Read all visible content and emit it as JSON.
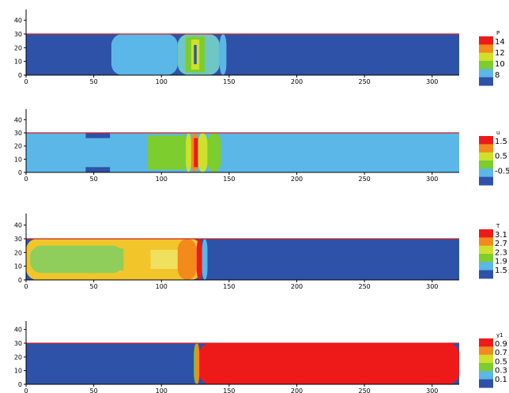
{
  "chart_data": [
    {
      "type": "heatmap",
      "xlim": [
        0,
        320
      ],
      "ylim": [
        0,
        45
      ],
      "x_ticks": [
        "0",
        "50",
        "100",
        "150",
        "200",
        "250",
        "300"
      ],
      "y_ticks": [
        "0",
        "10",
        "20",
        "30",
        "40"
      ],
      "legend": {
        "title": "P",
        "labels": [
          "14",
          "12",
          "10",
          "8"
        ]
      },
      "colors": [
        "#ee1a1a",
        "#f28a1c",
        "#cfe02a",
        "#7ccd2d",
        "#5ab7e8",
        "#2e52a8"
      ],
      "regions": [
        {
          "x0": 0,
          "x1": 320,
          "y0": 0,
          "y1": 30,
          "color": "#2e52a8"
        },
        {
          "x0": 63,
          "x1": 112,
          "y0": 0,
          "y1": 30,
          "color": "#5ab7e8"
        },
        {
          "x0": 112,
          "x1": 143,
          "y0": 0,
          "y1": 30,
          "color": "#6ec6c6"
        },
        {
          "x0": 118,
          "x1": 132,
          "y0": 2,
          "y1": 28,
          "color": "#7ccd2d"
        },
        {
          "x0": 122,
          "x1": 128,
          "y0": 4,
          "y1": 26,
          "color": "#cfe02a"
        },
        {
          "x0": 124,
          "x1": 126,
          "y0": 8,
          "y1": 22,
          "color": "#2e52a8"
        },
        {
          "x0": 143,
          "x1": 148,
          "y0": 0,
          "y1": 30,
          "color": "#5ab7e8"
        }
      ]
    },
    {
      "type": "heatmap",
      "xlim": [
        0,
        320
      ],
      "ylim": [
        0,
        45
      ],
      "x_ticks": [
        "0",
        "50",
        "100",
        "150",
        "200",
        "250",
        "300"
      ],
      "y_ticks": [
        "0",
        "10",
        "20",
        "30",
        "40"
      ],
      "legend": {
        "title": "u",
        "labels": [
          "1.5",
          "0.5",
          "-0.5"
        ]
      },
      "colors": [
        "#ee1a1a",
        "#f28a1c",
        "#cfe02a",
        "#7ccd2d",
        "#5ab7e8",
        "#2e52a8"
      ],
      "regions": [
        {
          "x0": 0,
          "x1": 320,
          "y0": 0,
          "y1": 30,
          "color": "#5ab7e8"
        },
        {
          "x0": 44,
          "x1": 62,
          "y0": 0,
          "y1": 4,
          "color": "#2e52a8"
        },
        {
          "x0": 44,
          "x1": 62,
          "y0": 26,
          "y1": 30,
          "color": "#2e52a8"
        },
        {
          "x0": 90,
          "x1": 118,
          "y0": 2,
          "y1": 28,
          "color": "#7ccd2d"
        },
        {
          "x0": 118,
          "x1": 122,
          "y0": 0,
          "y1": 30,
          "color": "#cfe02a"
        },
        {
          "x0": 122,
          "x1": 127,
          "y0": 0,
          "y1": 30,
          "color": "#f28a1c"
        },
        {
          "x0": 124,
          "x1": 127,
          "y0": 4,
          "y1": 26,
          "color": "#ee1a1a"
        },
        {
          "x0": 127,
          "x1": 134,
          "y0": 0,
          "y1": 30,
          "color": "#cfe02a"
        },
        {
          "x0": 134,
          "x1": 144,
          "y0": 0,
          "y1": 30,
          "color": "#7ccd2d"
        },
        {
          "x0": 144,
          "x1": 148,
          "y0": 0,
          "y1": 30,
          "color": "#5ab7e8"
        }
      ]
    },
    {
      "type": "heatmap",
      "xlim": [
        0,
        320
      ],
      "ylim": [
        0,
        45
      ],
      "x_ticks": [
        "0",
        "50",
        "100",
        "150",
        "200",
        "250",
        "300"
      ],
      "y_ticks": [
        "0",
        "10",
        "20",
        "30",
        "40"
      ],
      "legend": {
        "title": "T",
        "labels": [
          "3.1",
          "2.7",
          "2.3",
          "1.9",
          "1.5"
        ]
      },
      "colors": [
        "#ee1a1a",
        "#f28a1c",
        "#cfe02a",
        "#7ccd2d",
        "#5ab7e8",
        "#2e52a8"
      ],
      "regions": [
        {
          "x0": 0,
          "x1": 320,
          "y0": 0,
          "y1": 30,
          "color": "#2e52a8"
        },
        {
          "x0": 0,
          "x1": 130,
          "y0": 0,
          "y1": 30,
          "color": "#f2c52a"
        },
        {
          "x0": 3,
          "x1": 72,
          "y0": 5,
          "y1": 25,
          "color": "#8fce5a"
        },
        {
          "x0": 48,
          "x1": 72,
          "y0": 7,
          "y1": 23,
          "color": "#8fce5a"
        },
        {
          "x0": 92,
          "x1": 112,
          "y0": 8,
          "y1": 22,
          "color": "#f0e060"
        },
        {
          "x0": 112,
          "x1": 126,
          "y0": 0,
          "y1": 30,
          "color": "#f28a1c"
        },
        {
          "x0": 126,
          "x1": 130,
          "y0": 0,
          "y1": 30,
          "color": "#ee1a1a"
        },
        {
          "x0": 130,
          "x1": 134,
          "y0": 0,
          "y1": 30,
          "color": "#5ab7e8"
        }
      ]
    },
    {
      "type": "heatmap",
      "xlim": [
        0,
        320
      ],
      "ylim": [
        0,
        45
      ],
      "x_ticks": [
        "0",
        "50",
        "100",
        "150",
        "200",
        "250",
        "300"
      ],
      "y_ticks": [
        "0",
        "10",
        "20",
        "30",
        "40"
      ],
      "legend": {
        "title": "y1",
        "labels": [
          "0.9",
          "0.7",
          "0.5",
          "0.3",
          "0.1"
        ]
      },
      "colors": [
        "#ee1a1a",
        "#f28a1c",
        "#cfe02a",
        "#7ccd2d",
        "#5ab7e8",
        "#2e52a8"
      ],
      "regions": [
        {
          "x0": 0,
          "x1": 320,
          "y0": 0,
          "y1": 30,
          "color": "#2e52a8"
        },
        {
          "x0": 124,
          "x1": 128,
          "y0": 0,
          "y1": 30,
          "color": "#7ccd2d"
        },
        {
          "x0": 125,
          "x1": 128,
          "y0": 0,
          "y1": 30,
          "color": "#f28a1c"
        },
        {
          "x0": 128,
          "x1": 320,
          "y0": 0,
          "y1": 30,
          "color": "#ee1a1a"
        }
      ]
    }
  ]
}
